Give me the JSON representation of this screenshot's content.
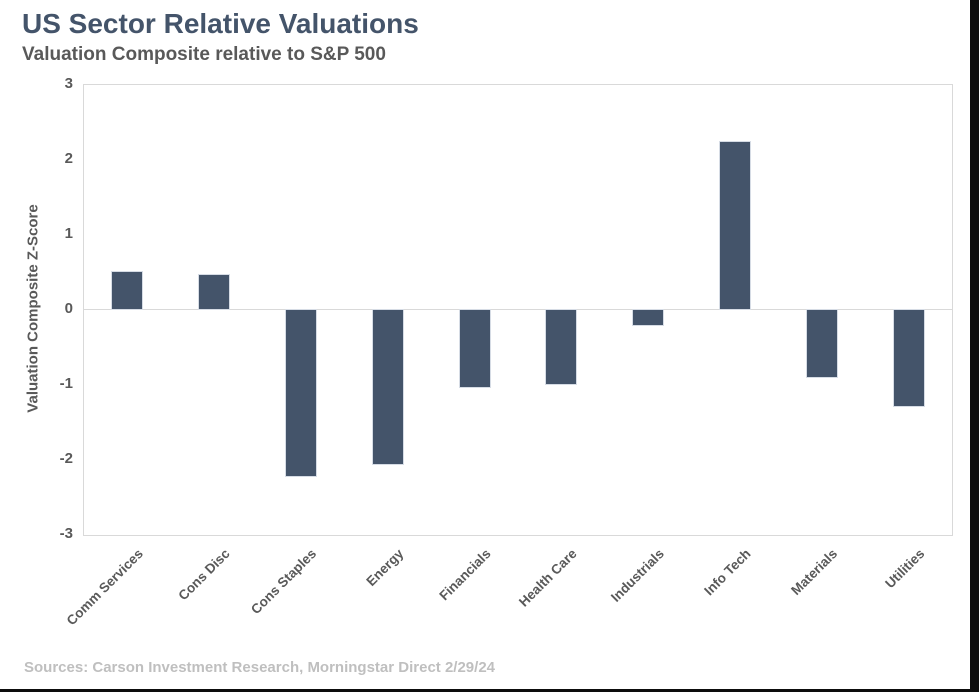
{
  "header": {
    "title": "US Sector Relative Valuations",
    "subtitle": "Valuation Composite relative to S&P 500"
  },
  "footer": {
    "source": "Sources: Carson Investment Research, Morningstar  Direct 2/29/24"
  },
  "chart_data": {
    "type": "bar",
    "title": "US Sector Relative Valuations",
    "subtitle": "Valuation Composite relative to S&P 500",
    "categories": [
      "Comm Services",
      "Cons Disc",
      "Cons Staples",
      "Energy",
      "Financials",
      "Health Care",
      "Industrials",
      "Info Tech",
      "Materials",
      "Utilities"
    ],
    "values": [
      0.52,
      0.48,
      -2.24,
      -2.08,
      -1.05,
      -1.01,
      -0.23,
      2.26,
      -0.92,
      -1.31
    ],
    "xlabel": "",
    "ylabel": "Valuation Composite Z-Score",
    "ylim": [
      -3,
      3
    ],
    "yticks": [
      3,
      2,
      1,
      0,
      -1,
      -2,
      -3
    ],
    "grid": "zero-line-only",
    "legend": "none",
    "bar_color": "#44546A",
    "bar_border_color": "#D6DCE5"
  },
  "colors": {
    "title_text": "#44546A",
    "subtitle_text": "#595959",
    "axis_text": "#595959",
    "source_text": "#BFBFBF",
    "plot_border": "#D9D9D9",
    "frame": "#0d0d0d"
  }
}
